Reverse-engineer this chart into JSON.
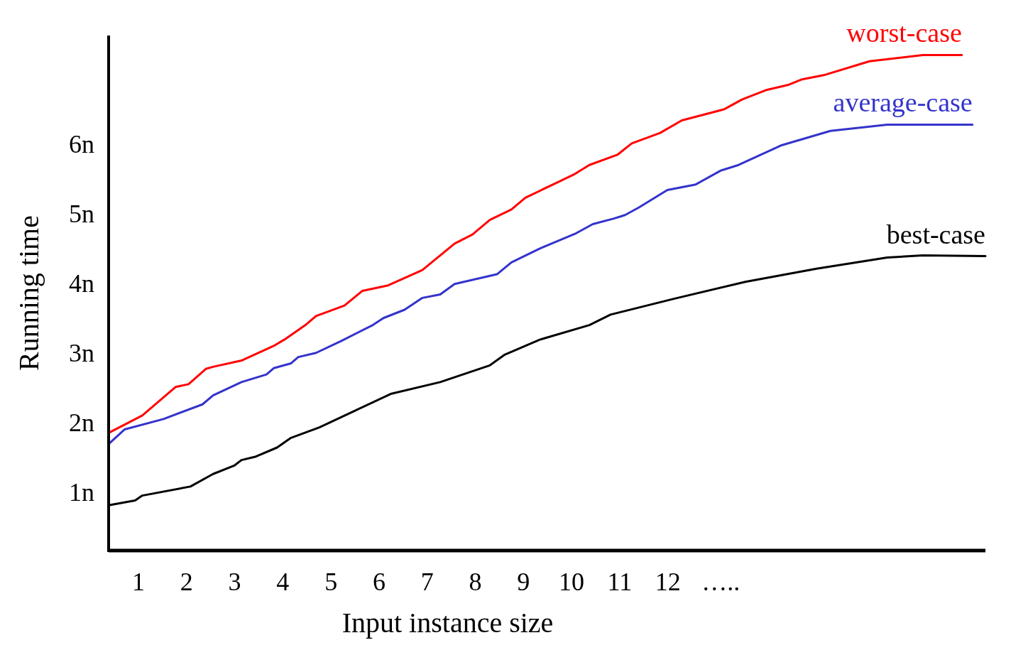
{
  "chart_data": {
    "type": "line",
    "xlabel": "Input instance size",
    "ylabel": "Running time",
    "xlim": [
      0.38,
      18.6
    ],
    "ylim": [
      0.16,
      7.56
    ],
    "xticks": [
      1,
      2,
      3,
      4,
      5,
      6,
      7,
      8,
      9,
      10,
      11,
      12,
      {
        "value": 13.1,
        "label": "….."
      }
    ],
    "yticks": [
      {
        "value": 1,
        "label": "1n"
      },
      {
        "value": 2,
        "label": "2n"
      },
      {
        "value": 3,
        "label": "3n"
      },
      {
        "value": 4,
        "label": "4n"
      },
      {
        "value": 5,
        "label": "5n"
      },
      {
        "value": 6,
        "label": "6n"
      }
    ],
    "grid": false,
    "marker": "none",
    "line_style": "solid",
    "series": [
      {
        "name": "worst-case",
        "color": "#ff0000",
        "x": [
          0.38,
          1.08,
          1.77,
          2.04,
          2.4,
          2.55,
          3.14,
          3.81,
          4.03,
          4.47,
          4.69,
          5.28,
          5.65,
          6.19,
          6.9,
          7.57,
          7.94,
          8.3,
          8.75,
          9.04,
          10.04,
          10.37,
          10.96,
          11.25,
          11.84,
          12.29,
          13.17,
          13.54,
          14.06,
          14.5,
          14.79,
          15.24,
          16.19,
          17.3,
          18.11
        ],
        "values": [
          1.85,
          2.1,
          2.51,
          2.55,
          2.77,
          2.8,
          2.89,
          3.1,
          3.19,
          3.4,
          3.53,
          3.68,
          3.89,
          3.97,
          4.19,
          4.57,
          4.7,
          4.91,
          5.06,
          5.23,
          5.56,
          5.7,
          5.85,
          6.01,
          6.16,
          6.34,
          6.5,
          6.64,
          6.78,
          6.85,
          6.93,
          6.99,
          7.19,
          7.28,
          7.28
        ]
      },
      {
        "name": "average-case",
        "color": "#3333cc",
        "x": [
          0.38,
          0.71,
          1.52,
          2.33,
          2.55,
          3.14,
          3.66,
          3.81,
          4.17,
          4.32,
          4.69,
          5.21,
          5.87,
          6.09,
          6.53,
          6.9,
          7.27,
          7.57,
          8.45,
          8.75,
          9.34,
          10.07,
          10.44,
          10.88,
          11.11,
          11.4,
          11.99,
          12.58,
          13.1,
          13.47,
          14.35,
          15.38,
          16.56,
          18.33
        ],
        "values": [
          1.69,
          1.9,
          2.05,
          2.26,
          2.39,
          2.58,
          2.69,
          2.78,
          2.85,
          2.94,
          3,
          3.17,
          3.4,
          3.5,
          3.62,
          3.79,
          3.84,
          3.99,
          4.13,
          4.3,
          4.5,
          4.71,
          4.85,
          4.93,
          4.98,
          5.09,
          5.34,
          5.42,
          5.62,
          5.7,
          5.98,
          6.19,
          6.28,
          6.28
        ]
      },
      {
        "name": "best-case",
        "color": "#000000",
        "x": [
          0.38,
          0.93,
          1.08,
          2.08,
          2.55,
          2.99,
          3.14,
          3.44,
          3.88,
          4.17,
          4.76,
          5.5,
          6.24,
          7.27,
          8.3,
          8.6,
          9.34,
          10.37,
          10.81,
          12.14,
          13.61,
          15.09,
          16.56,
          17.3,
          18.6
        ],
        "values": [
          0.81,
          0.88,
          0.95,
          1.08,
          1.26,
          1.38,
          1.46,
          1.51,
          1.64,
          1.78,
          1.93,
          2.17,
          2.41,
          2.58,
          2.82,
          2.97,
          3.19,
          3.4,
          3.55,
          3.78,
          4.02,
          4.21,
          4.37,
          4.4,
          4.39
        ]
      }
    ]
  }
}
